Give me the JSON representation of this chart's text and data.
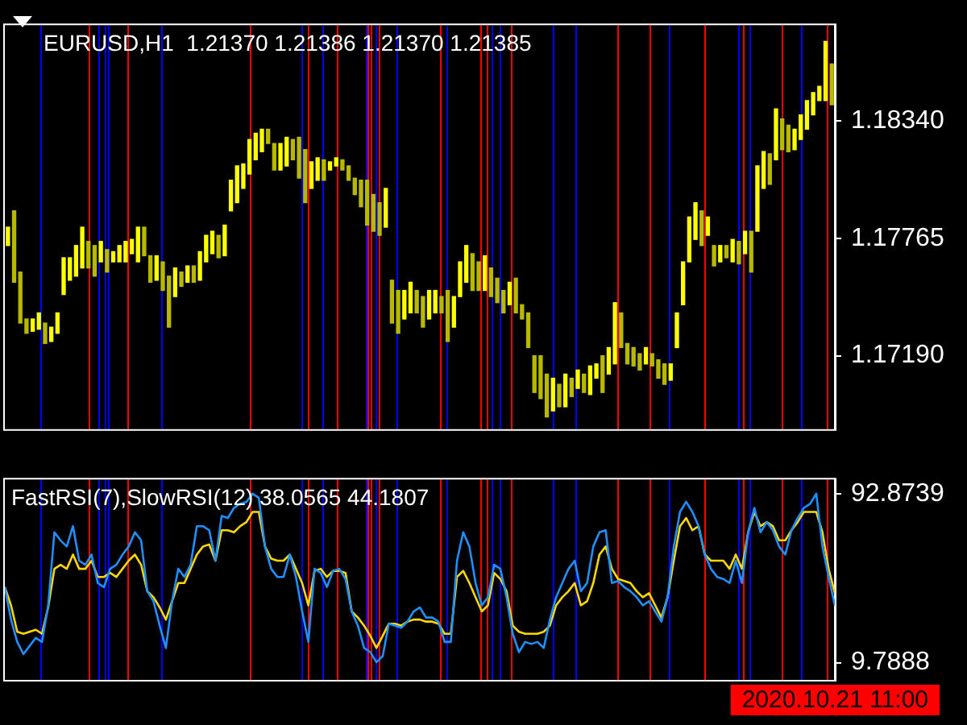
{
  "chart_data": [
    {
      "type": "candlestick",
      "title": "EURUSD,H1  1.21370 1.21386 1.21370 1.21385",
      "colors": [
        "#ffff00",
        "#b8b800",
        "#b8b800",
        "#b8b800",
        "#ffff00",
        "#ffff00",
        "#b8b800",
        "#ffff00",
        "#ffff00",
        "#ffff00",
        "#ffff00",
        "#ffff00",
        "#ffff00",
        "#b8b800",
        "#b8b800",
        "#ffff00",
        "#b8b800",
        "#ffff00",
        "#ffff00",
        "#ffff00",
        "#ffff00",
        "#ffff00",
        "#b8b800",
        "#b8b800",
        "#ffff00",
        "#b8b800",
        "#b8b800",
        "#ffff00",
        "#b8b800",
        "#ffff00",
        "#b8b800",
        "#ffff00",
        "#ffff00",
        "#ffff00",
        "#b8b800",
        "#ffff00",
        "#ffff00",
        "#ffff00",
        "#ffff00",
        "#ffff00",
        "#ffff00",
        "#ffff00",
        "#b8b800",
        "#b8b800",
        "#ffff00",
        "#ffff00",
        "#b8b800",
        "#b8b800",
        "#b8b800",
        "#ffff00",
        "#ffff00",
        "#b8b800",
        "#ffff00",
        "#ffff00",
        "#b8b800",
        "#b8b800",
        "#b8b800",
        "#b8b800",
        "#b8b800",
        "#b8b800",
        "#b8b800",
        "#ffff00",
        "#b8b800",
        "#b8b800",
        "#ffff00",
        "#ffff00",
        "#b8b800",
        "#b8b800",
        "#ffff00",
        "#ffff00",
        "#b8b800",
        "#b8b800",
        "#ffff00",
        "#ffff00",
        "#ffff00",
        "#b8b800",
        "#b8b800",
        "#ffff00",
        "#b8b800",
        "#b8b800",
        "#b8b800",
        "#ffff00",
        "#b8b800",
        "#b8b800",
        "#b8b800",
        "#b8b800",
        "#b8b800",
        "#b8b800",
        "#ffff00",
        "#b8b800",
        "#ffff00",
        "#b8b800",
        "#ffff00",
        "#b8b800",
        "#ffff00",
        "#ffff00",
        "#b8b800",
        "#ffff00",
        "#ffff00",
        "#b8b800",
        "#b8b800",
        "#b8b800",
        "#b8b800",
        "#ffff00",
        "#b8b800",
        "#b8b800",
        "#b8b800",
        "#ffff00",
        "#ffff00",
        "#ffff00",
        "#ffff00",
        "#ffff00",
        "#b8b800",
        "#ffff00",
        "#b8b800",
        "#ffff00",
        "#b8b800",
        "#ffff00",
        "#b8b800",
        "#ffff00",
        "#b8b800",
        "#ffff00",
        "#ffff00",
        "#b8b800",
        "#ffff00",
        "#b8b800",
        "#b8b800",
        "#ffff00",
        "#ffff00",
        "#ffff00",
        "#ffff00",
        "#ffff00",
        "#ffff00",
        "#b8b800"
      ],
      "ylim": [
        1.1683,
        1.1881
      ],
      "yticks": [
        {
          "value": 1.1834,
          "label": "1.18340"
        },
        1.17765,
        {
          "value": 1.1719,
          "label": "1.17190"
        }
      ],
      "tick_labels": "y",
      "grid": false,
      "categories": [
        null,
        null,
        null,
        null,
        null,
        null,
        null,
        null,
        null,
        null,
        null,
        null,
        null,
        null,
        null,
        null,
        null,
        null,
        null,
        null,
        null,
        null,
        null,
        null,
        null,
        null,
        null,
        null,
        null,
        null,
        null,
        null,
        null,
        null,
        null,
        null,
        null,
        null,
        null,
        null,
        null,
        null,
        null,
        null,
        null,
        null,
        null,
        null,
        null,
        null,
        null,
        null,
        null,
        null,
        null,
        null,
        null,
        null,
        null,
        null,
        null,
        null,
        null,
        null,
        null,
        null,
        null,
        null,
        null,
        null,
        null,
        null,
        null,
        null,
        null,
        null,
        null,
        null,
        null,
        null,
        null,
        null,
        null,
        null,
        null,
        null,
        null,
        null,
        null,
        null,
        null,
        null,
        null,
        null,
        null,
        null,
        null,
        null,
        null,
        null,
        null,
        null,
        null,
        null,
        null,
        null,
        null,
        null,
        null,
        null,
        null,
        null,
        null,
        null,
        null,
        null,
        null,
        null,
        null,
        null,
        null,
        null,
        null,
        null,
        null,
        null,
        null,
        null,
        null,
        null,
        null,
        null,
        null,
        null
      ],
      "ohlc": [
        [
          1.1773,
          1.1782,
          1.1773,
          1.1782
        ],
        [
          1.179,
          1.179,
          1.1755,
          1.1755
        ],
        [
          1.176,
          1.176,
          1.1735,
          1.1735
        ],
        [
          1.1737,
          1.1737,
          1.173,
          1.173
        ],
        [
          1.1731,
          1.1737,
          1.1731,
          1.1737
        ],
        [
          1.1732,
          1.174,
          1.1732,
          1.174
        ],
        [
          1.1735,
          1.1735,
          1.1725,
          1.1725
        ],
        [
          1.1726,
          1.1733,
          1.1726,
          1.1733
        ],
        [
          1.173,
          1.174,
          1.173,
          1.174
        ],
        [
          1.1749,
          1.1767,
          1.1749,
          1.1767
        ],
        [
          1.1756,
          1.1767,
          1.1756,
          1.1767
        ],
        [
          1.1758,
          1.1773,
          1.1758,
          1.1773
        ],
        [
          1.1762,
          1.1782,
          1.1762,
          1.1782
        ],
        [
          1.1775,
          1.1775,
          1.1762,
          1.1762
        ],
        [
          1.1773,
          1.1773,
          1.1758,
          1.1758
        ],
        [
          1.1765,
          1.1775,
          1.1765,
          1.1775
        ],
        [
          1.1771,
          1.1771,
          1.176,
          1.176
        ],
        [
          1.1765,
          1.177,
          1.1765,
          1.177
        ],
        [
          1.1765,
          1.1773,
          1.1765,
          1.1773
        ],
        [
          1.1765,
          1.1775,
          1.1765,
          1.1775
        ],
        [
          1.1769,
          1.1776,
          1.1769,
          1.1776
        ],
        [
          1.1765,
          1.1782,
          1.1765,
          1.1782
        ],
        [
          1.1782,
          1.1782,
          1.1768,
          1.1768
        ],
        [
          1.1768,
          1.1768,
          1.1755,
          1.1755
        ],
        [
          1.1756,
          1.1768,
          1.1756,
          1.1768
        ],
        [
          1.1765,
          1.1765,
          1.1751,
          1.1751
        ],
        [
          1.1758,
          1.1758,
          1.1733,
          1.1733
        ],
        [
          1.1748,
          1.1762,
          1.1748,
          1.1762
        ],
        [
          1.176,
          1.176,
          1.1753,
          1.1753
        ],
        [
          1.1755,
          1.1763,
          1.1755,
          1.1763
        ],
        [
          1.1763,
          1.1763,
          1.1755,
          1.1755
        ],
        [
          1.1756,
          1.177,
          1.1756,
          1.177
        ],
        [
          1.1765,
          1.1778,
          1.1765,
          1.1778
        ],
        [
          1.1769,
          1.178,
          1.1769,
          1.178
        ],
        [
          1.1778,
          1.1778,
          1.1767,
          1.1767
        ],
        [
          1.1768,
          1.1783,
          1.1768,
          1.1783
        ],
        [
          1.179,
          1.1805,
          1.179,
          1.1805
        ],
        [
          1.1794,
          1.1812,
          1.1794,
          1.1812
        ],
        [
          1.1801,
          1.1813,
          1.1801,
          1.1813
        ],
        [
          1.1808,
          1.1825,
          1.1808,
          1.1825
        ],
        [
          1.1815,
          1.1828,
          1.1815,
          1.1828
        ],
        [
          1.1819,
          1.183,
          1.1819,
          1.183
        ],
        [
          1.183,
          1.183,
          1.1823,
          1.1823
        ],
        [
          1.1823,
          1.1823,
          1.181,
          1.181
        ],
        [
          1.181,
          1.1823,
          1.181,
          1.1823
        ],
        [
          1.1812,
          1.1826,
          1.1812,
          1.1826
        ],
        [
          1.1825,
          1.1825,
          1.1815,
          1.1815
        ],
        [
          1.1826,
          1.1826,
          1.1806,
          1.1806
        ],
        [
          1.182,
          1.182,
          1.1794,
          1.1794
        ],
        [
          1.1801,
          1.1814,
          1.1801,
          1.1814
        ],
        [
          1.1805,
          1.1816,
          1.1805,
          1.1816
        ],
        [
          1.1815,
          1.1815,
          1.1805,
          1.1805
        ],
        [
          1.181,
          1.1814,
          1.181,
          1.1814
        ],
        [
          1.1812,
          1.1816,
          1.1812,
          1.1816
        ],
        [
          1.1815,
          1.1815,
          1.181,
          1.181
        ],
        [
          1.1812,
          1.1812,
          1.1805,
          1.1805
        ],
        [
          1.1806,
          1.1806,
          1.1798,
          1.1798
        ],
        [
          1.1805,
          1.1805,
          1.1792,
          1.1792
        ],
        [
          1.1805,
          1.1805,
          1.1783,
          1.1783
        ],
        [
          1.1798,
          1.1798,
          1.178,
          1.178
        ],
        [
          1.1794,
          1.1794,
          1.1778,
          1.1778
        ],
        [
          1.1782,
          1.1801,
          1.1782,
          1.1801
        ],
        [
          1.1756,
          1.1756,
          1.1735,
          1.1735
        ],
        [
          1.1751,
          1.1751,
          1.173,
          1.173
        ],
        [
          1.1737,
          1.1751,
          1.1737,
          1.1751
        ],
        [
          1.174,
          1.1755,
          1.174,
          1.1755
        ],
        [
          1.1751,
          1.1751,
          1.174,
          1.174
        ],
        [
          1.1748,
          1.1748,
          1.1733,
          1.1733
        ],
        [
          1.1737,
          1.1751,
          1.1737,
          1.1751
        ],
        [
          1.174,
          1.1751,
          1.174,
          1.1751
        ],
        [
          1.1748,
          1.1748,
          1.174,
          1.174
        ],
        [
          1.1751,
          1.1751,
          1.1726,
          1.1726
        ],
        [
          1.1733,
          1.1748,
          1.1733,
          1.1748
        ],
        [
          1.1748,
          1.1765,
          1.1748,
          1.1765
        ],
        [
          1.1755,
          1.1773,
          1.1755,
          1.1773
        ],
        [
          1.1769,
          1.1769,
          1.1751,
          1.1751
        ],
        [
          1.1765,
          1.1765,
          1.1751,
          1.1751
        ],
        [
          1.1751,
          1.1768,
          1.1751,
          1.1768
        ],
        [
          1.1762,
          1.1762,
          1.1748,
          1.1748
        ],
        [
          1.1757,
          1.1757,
          1.1745,
          1.1745
        ],
        [
          1.1751,
          1.1751,
          1.174,
          1.174
        ],
        [
          1.1744,
          1.1755,
          1.1744,
          1.1755
        ],
        [
          1.1757,
          1.1757,
          1.174,
          1.174
        ],
        [
          1.1744,
          1.1744,
          1.1737,
          1.1737
        ],
        [
          1.174,
          1.174,
          1.1723,
          1.1723
        ],
        [
          1.1719,
          1.1719,
          1.1701,
          1.1701
        ],
        [
          1.1719,
          1.1719,
          1.1698,
          1.1698
        ],
        [
          1.171,
          1.171,
          1.1689,
          1.1689
        ],
        [
          1.1692,
          1.1708,
          1.1692,
          1.1708
        ],
        [
          1.1705,
          1.1705,
          1.1694,
          1.1694
        ],
        [
          1.1694,
          1.171,
          1.1694,
          1.171
        ],
        [
          1.1708,
          1.1708,
          1.1699,
          1.1699
        ],
        [
          1.1703,
          1.1712,
          1.1703,
          1.1712
        ],
        [
          1.171,
          1.171,
          1.1701,
          1.1701
        ],
        [
          1.17,
          1.1714,
          1.17,
          1.1714
        ],
        [
          1.1708,
          1.1715,
          1.1708,
          1.1715
        ],
        [
          1.1719,
          1.1719,
          1.1701,
          1.1701
        ],
        [
          1.171,
          1.1723,
          1.171,
          1.1723
        ],
        [
          1.1715,
          1.1745,
          1.1715,
          1.1745
        ],
        [
          1.174,
          1.174,
          1.1723,
          1.1723
        ],
        [
          1.1725,
          1.1725,
          1.1715,
          1.1715
        ],
        [
          1.1723,
          1.1723,
          1.1714,
          1.1714
        ],
        [
          1.172,
          1.172,
          1.1712,
          1.1712
        ],
        [
          1.1715,
          1.1723,
          1.1715,
          1.1723
        ],
        [
          1.172,
          1.172,
          1.1714,
          1.1714
        ],
        [
          1.1717,
          1.1717,
          1.1708,
          1.1708
        ],
        [
          1.1715,
          1.1715,
          1.1705,
          1.1705
        ],
        [
          1.1707,
          1.1715,
          1.1707,
          1.1715
        ],
        [
          1.1723,
          1.174,
          1.1723,
          1.174
        ],
        [
          1.1744,
          1.1765,
          1.1744,
          1.1765
        ],
        [
          1.1765,
          1.1787,
          1.1765,
          1.1787
        ],
        [
          1.1776,
          1.1794,
          1.1776,
          1.1794
        ],
        [
          1.179,
          1.179,
          1.1773,
          1.1773
        ],
        [
          1.1778,
          1.1787,
          1.1778,
          1.1787
        ],
        [
          1.1773,
          1.1773,
          1.1763,
          1.1763
        ],
        [
          1.1765,
          1.1773,
          1.1765,
          1.1773
        ],
        [
          1.1773,
          1.1773,
          1.1767,
          1.1767
        ],
        [
          1.1765,
          1.1776,
          1.1765,
          1.1776
        ],
        [
          1.1775,
          1.1775,
          1.1764,
          1.1764
        ],
        [
          1.1769,
          1.178,
          1.1769,
          1.178
        ],
        [
          1.178,
          1.178,
          1.176,
          1.176
        ],
        [
          1.178,
          1.1812,
          1.178,
          1.1812
        ],
        [
          1.1801,
          1.1819,
          1.1801,
          1.1819
        ],
        [
          1.1818,
          1.1818,
          1.1803,
          1.1803
        ],
        [
          1.1815,
          1.184,
          1.1815,
          1.184
        ],
        [
          1.1835,
          1.1835,
          1.182,
          1.182
        ],
        [
          1.1832,
          1.1832,
          1.1819,
          1.1819
        ],
        [
          1.182,
          1.183,
          1.182,
          1.183
        ],
        [
          1.1825,
          1.1837,
          1.1825,
          1.1837
        ],
        [
          1.183,
          1.1844,
          1.183,
          1.1844
        ],
        [
          1.1837,
          1.1848,
          1.1837,
          1.1848
        ],
        [
          1.1844,
          1.1851,
          1.1844,
          1.1851
        ],
        [
          1.1844,
          1.1873,
          1.1844,
          1.1873
        ],
        [
          1.1862,
          1.1862,
          1.1842,
          1.1842
        ]
      ]
    },
    {
      "type": "line",
      "title": "FastRSI(7),SlowRSI(12) 38.0565 44.1807",
      "ylim": [
        1.3,
        100
      ],
      "yticks": [
        92.8739,
        9.7888
      ],
      "tick_labels": "y",
      "grid": false,
      "annotations": [
        "2020.10.21 11:00"
      ],
      "categories": [
        null,
        null,
        null,
        null,
        null,
        null,
        null,
        null,
        null,
        null,
        null,
        null,
        null,
        null,
        null,
        null,
        null,
        null,
        null,
        null,
        null,
        null,
        null,
        null,
        null,
        null,
        null,
        null,
        null,
        null,
        null,
        null,
        null,
        null,
        null,
        null,
        null,
        null,
        null,
        null,
        null,
        null,
        null,
        null,
        null,
        null,
        null,
        null,
        null,
        null,
        null,
        null,
        null,
        null,
        null,
        null,
        null,
        null,
        null,
        null,
        null,
        null,
        null,
        null,
        null,
        null,
        null,
        null,
        null,
        null,
        null,
        null,
        null,
        null,
        null,
        null,
        null,
        null,
        null,
        null,
        null,
        null,
        null,
        null,
        null,
        null,
        null,
        null,
        null,
        null,
        null,
        null,
        null,
        null,
        null,
        null,
        null,
        null,
        null,
        null,
        null,
        null,
        null,
        null,
        null,
        null,
        null,
        null,
        null,
        null,
        null,
        null,
        null,
        null,
        null,
        null,
        null,
        null,
        null,
        null,
        null,
        null,
        null,
        null,
        null,
        null,
        null,
        null,
        null,
        null,
        null,
        null,
        null,
        null,
        null
      ],
      "series": [
        {
          "color": "#1e90ff",
          "values": [
            47,
            31,
            20,
            14,
            18,
            22,
            20,
            38,
            74,
            70,
            67,
            77,
            60,
            58,
            63,
            49,
            47,
            56,
            58,
            63,
            67,
            74,
            70,
            45,
            40,
            28,
            17,
            40,
            56,
            52,
            58,
            77,
            77,
            75,
            60,
            82,
            81,
            86,
            88,
            89,
            93,
            91,
            67,
            56,
            52,
            52,
            63,
            52,
            35,
            20,
            56,
            54,
            47,
            55,
            56,
            51,
            35,
            28,
            17,
            15,
            10,
            13,
            29,
            28,
            27,
            30,
            35,
            37,
            32,
            32,
            30,
            20,
            20,
            60,
            74,
            67,
            49,
            38,
            42,
            58,
            56,
            42,
            24,
            15,
            20,
            19,
            20,
            17,
            31,
            42,
            49,
            56,
            60,
            45,
            49,
            67,
            74,
            75,
            49,
            50,
            47,
            45,
            42,
            38,
            40,
            35,
            30,
            42,
            67,
            84,
            89,
            84,
            77,
            63,
            56,
            52,
            51,
            49,
            60,
            49,
            74,
            86,
            74,
            79,
            75,
            67,
            63,
            75,
            81,
            86,
            88,
            93,
            67,
            52,
            38
          ]
        },
        {
          "color": "#ffd700",
          "values": [
            47,
            38,
            25,
            24,
            25,
            26,
            24,
            37,
            56,
            58,
            56,
            63,
            56,
            56,
            60,
            52,
            52,
            54,
            52,
            56,
            60,
            63,
            58,
            45,
            42,
            37,
            31,
            40,
            49,
            49,
            56,
            63,
            67,
            68,
            60,
            75,
            75,
            74,
            77,
            79,
            84,
            84,
            67,
            61,
            60,
            60,
            63,
            56,
            49,
            38,
            55,
            56,
            52,
            55,
            55,
            54,
            35,
            32,
            28,
            23,
            17,
            23,
            29,
            29,
            28,
            30,
            31,
            31,
            30,
            30,
            29,
            24,
            24,
            52,
            55,
            49,
            42,
            35,
            38,
            54,
            51,
            45,
            28,
            25,
            24,
            24,
            24,
            25,
            28,
            38,
            42,
            45,
            49,
            38,
            40,
            49,
            63,
            67,
            56,
            51,
            50,
            49,
            45,
            42,
            44,
            38,
            32,
            42,
            60,
            77,
            81,
            75,
            77,
            63,
            60,
            60,
            60,
            56,
            63,
            56,
            74,
            84,
            77,
            79,
            77,
            70,
            70,
            75,
            79,
            84,
            84,
            84,
            74,
            56,
            44
          ]
        }
      ]
    }
  ]
}
